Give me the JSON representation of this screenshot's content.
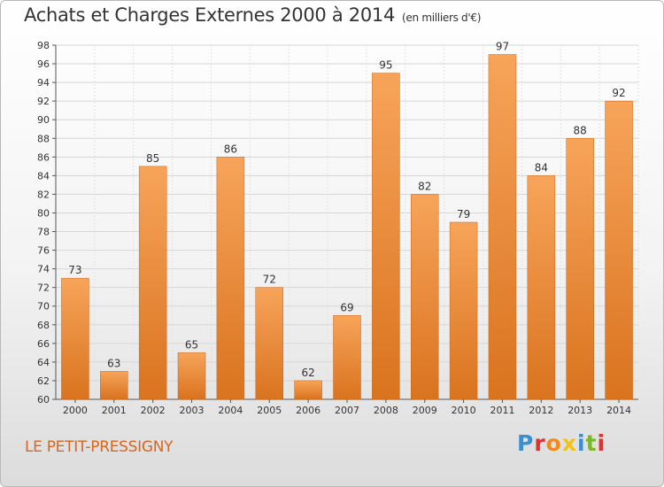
{
  "header": {
    "title": "Achats et Charges Externes 2000 à 2014",
    "unit": "(en milliers d'€)"
  },
  "footer": {
    "location": "LE PETIT-PRESSIGNY",
    "logo_text": "Proxiti",
    "logo_colors": [
      "#3a8fd1",
      "#e0312f",
      "#f08a1c",
      "#f2c21c",
      "#3a8fd1",
      "#7ab829",
      "#e0312f"
    ]
  },
  "chart_data": {
    "type": "bar",
    "categories": [
      "2000",
      "2001",
      "2002",
      "2003",
      "2004",
      "2005",
      "2006",
      "2007",
      "2008",
      "2009",
      "2010",
      "2011",
      "2012",
      "2013",
      "2014"
    ],
    "values": [
      73,
      63,
      85,
      65,
      86,
      72,
      62,
      69,
      95,
      82,
      79,
      97,
      84,
      88,
      92
    ],
    "ylim": [
      60,
      98
    ],
    "yticks": [
      60,
      62,
      64,
      66,
      68,
      70,
      72,
      74,
      76,
      78,
      80,
      82,
      84,
      86,
      88,
      90,
      92,
      94,
      96,
      98
    ],
    "grid": true,
    "bar_color_top": "#f7a45a",
    "bar_color_bottom": "#d9731f"
  }
}
